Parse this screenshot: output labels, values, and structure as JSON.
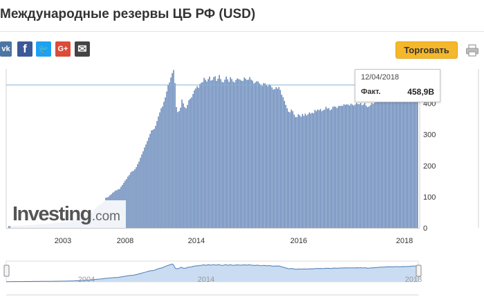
{
  "header": {
    "title": "Международные резервы ЦБ РФ (USD)"
  },
  "share": {
    "items": [
      {
        "name": "vk-share",
        "glyph": "vk",
        "color": "#4c75a3"
      },
      {
        "name": "facebook-share",
        "glyph": "f",
        "color": "#3b5998"
      },
      {
        "name": "twitter-share",
        "glyph": "🐦",
        "color": "#1da1f2"
      },
      {
        "name": "google-plus-share",
        "glyph": "G+",
        "color": "#dd4b39"
      },
      {
        "name": "email-share",
        "glyph": "✉",
        "color": "#444444"
      }
    ]
  },
  "toolbar": {
    "trade_label": "Торговать",
    "print_icon": "printer-icon"
  },
  "tooltip": {
    "date": "12/04/2018",
    "label": "Факт.",
    "value": "458,9B"
  },
  "watermark": {
    "main": "Investing",
    "suffix": ".com"
  },
  "colors": {
    "bar": "#5b7fb4",
    "accent": "#f5b72b",
    "navigator_fill": "#c9dcf2",
    "navigator_line": "#4a7ab5",
    "crosshair": "#7fb3d6"
  },
  "chart_data": {
    "type": "bar",
    "x_ticks": [
      "2003",
      "2008",
      "2014",
      "2016",
      "2018"
    ],
    "y_ticks": [
      0,
      100,
      200,
      300,
      400
    ],
    "ylim": [
      0,
      510
    ],
    "highlight": {
      "date": "12/04/2018",
      "value": 458.9
    },
    "values": [
      6,
      6,
      6,
      6,
      7,
      7,
      7,
      7,
      8,
      8,
      8,
      8,
      8,
      9,
      9,
      9,
      10,
      10,
      10,
      11,
      11,
      11,
      12,
      12,
      12,
      13,
      13,
      13,
      14,
      14,
      14,
      15,
      15,
      16,
      16,
      17,
      17,
      18,
      18,
      19,
      19,
      20,
      20,
      21,
      22,
      22,
      24,
      25,
      26,
      28,
      30,
      32,
      33,
      36,
      38,
      41,
      43,
      45,
      47,
      48,
      51,
      57,
      60,
      66,
      69,
      72,
      76,
      78,
      83,
      86,
      97,
      98,
      100,
      105,
      108,
      113,
      116,
      120,
      121,
      124,
      125,
      132,
      138,
      145,
      152,
      157,
      165,
      170,
      178,
      182,
      183,
      188,
      195,
      205,
      213,
      225,
      236,
      246,
      258,
      268,
      279,
      290,
      302,
      313,
      315,
      318,
      328,
      343,
      358,
      371,
      384,
      390,
      405,
      419,
      438,
      458,
      467,
      483,
      497,
      507,
      465,
      388,
      372,
      375,
      386,
      412,
      400,
      388,
      384,
      395,
      410,
      415,
      419,
      430,
      442,
      448,
      455,
      450,
      462,
      466,
      468,
      482,
      476,
      470,
      478,
      486,
      473,
      475,
      484,
      487,
      472,
      479,
      491,
      478,
      469,
      467,
      476,
      486,
      477,
      469,
      484,
      478,
      470,
      467,
      475,
      480,
      478,
      476,
      473,
      472,
      483,
      479,
      475,
      476,
      484,
      476,
      473,
      464,
      467,
      471,
      470,
      464,
      459,
      456,
      465,
      464,
      458,
      455,
      461,
      457,
      451,
      444,
      446,
      452,
      447,
      452,
      443,
      428,
      420,
      408,
      395,
      384,
      373,
      371,
      380,
      375,
      364,
      356,
      356,
      365,
      362,
      357,
      366,
      360,
      367,
      361,
      365,
      371,
      367,
      370,
      368,
      379,
      375,
      380,
      378,
      382,
      375,
      378,
      380,
      389,
      383,
      385,
      378,
      381,
      389,
      390,
      389,
      385,
      391,
      392,
      392,
      392,
      397,
      395,
      397,
      396,
      393,
      399,
      396,
      393,
      396,
      401,
      398,
      397,
      401,
      394,
      396,
      401,
      393,
      388,
      390,
      394,
      401,
      398,
      402,
      407,
      408,
      413,
      415,
      418,
      416,
      421,
      422,
      427,
      429,
      425,
      428,
      424,
      431,
      432,
      427,
      431,
      428,
      432,
      433,
      432,
      434,
      434,
      436,
      438,
      445,
      448,
      449,
      451,
      455,
      458.9
    ]
  }
}
